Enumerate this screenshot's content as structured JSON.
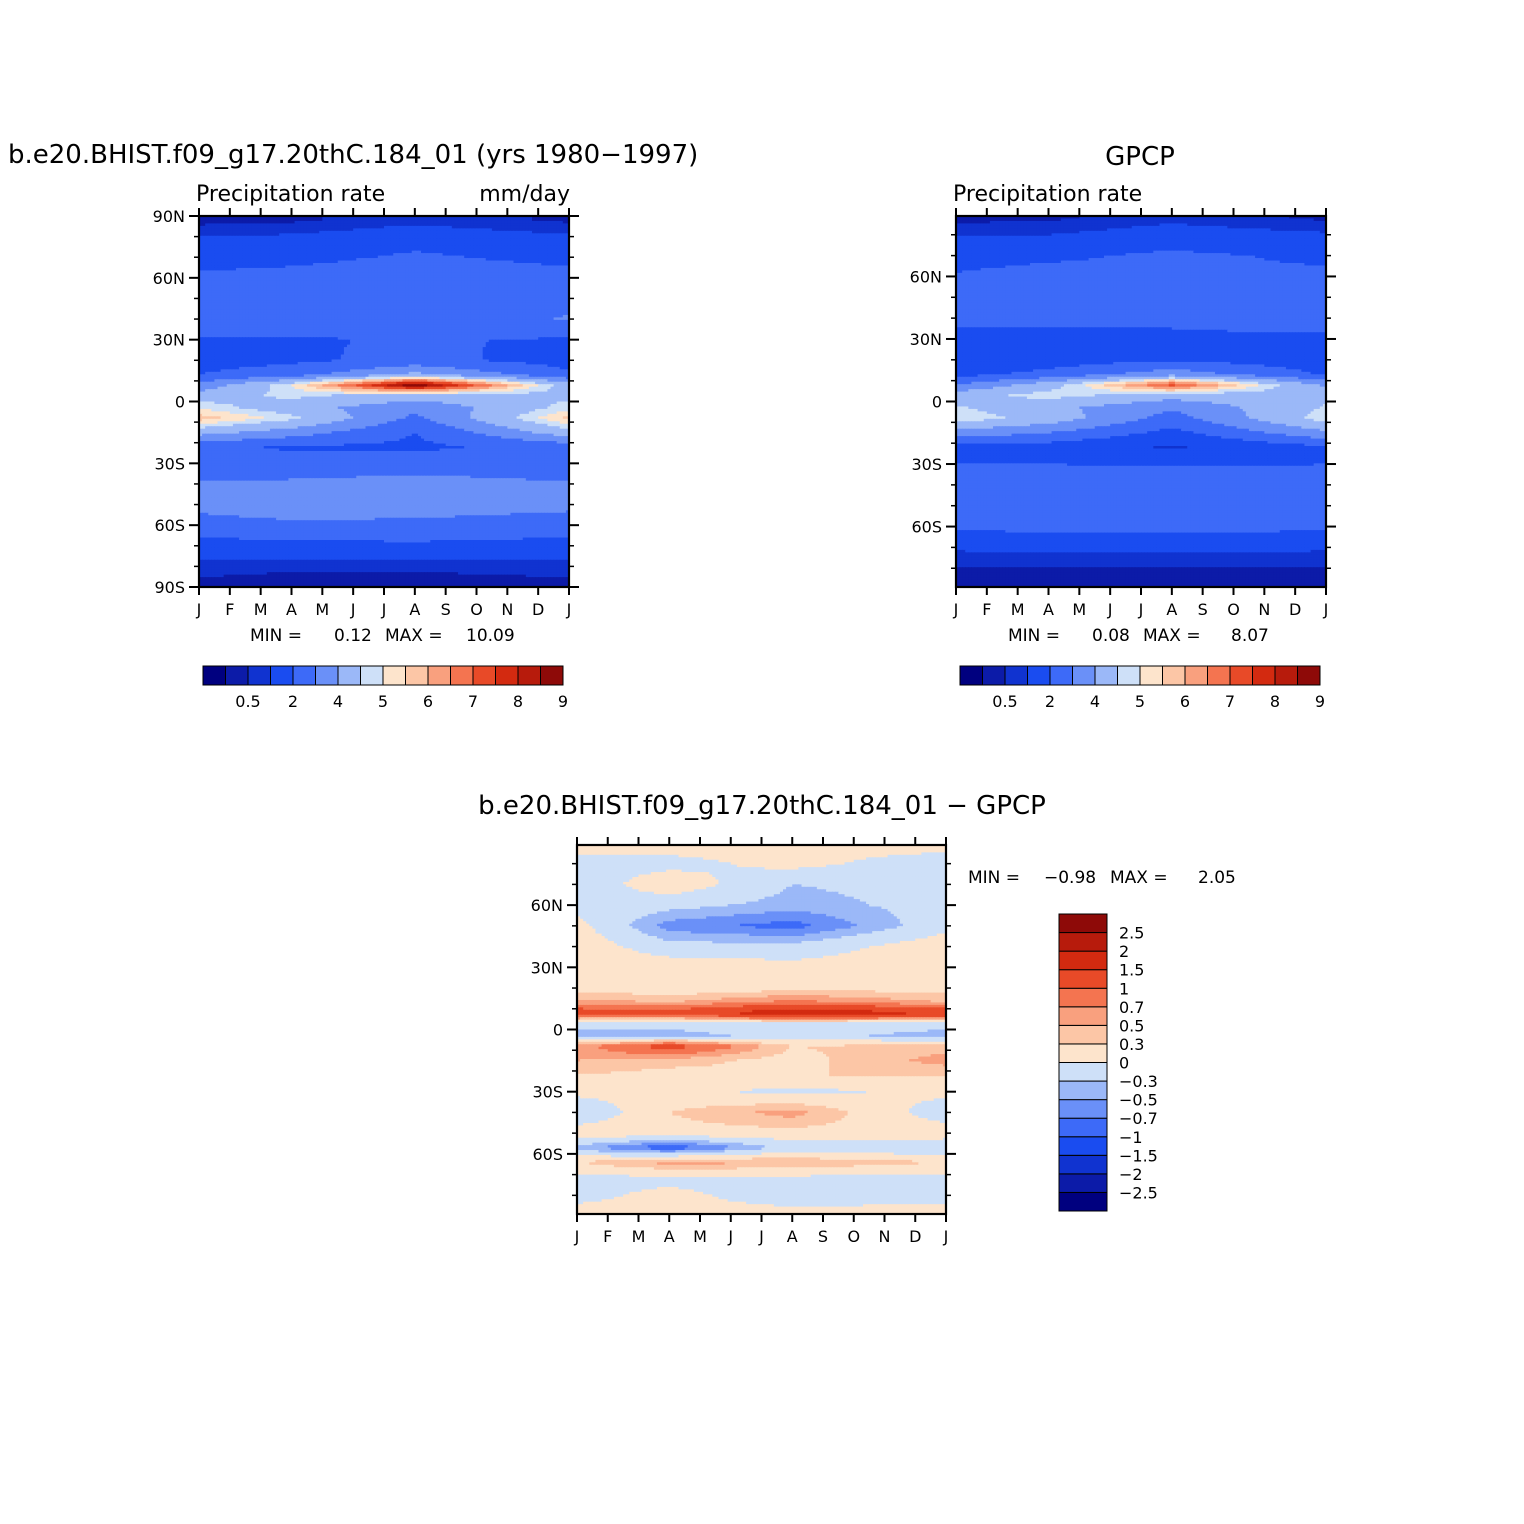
{
  "chart_data": [
    {
      "type": "heatmap",
      "title": "b.e20.BHIST.f09_g17.20thC.184_01 (yrs 1980−1997)",
      "subtitle_left": "Precipitation  rate",
      "subtitle_right": "mm/day",
      "x_ticks": [
        "J",
        "F",
        "M",
        "A",
        "M",
        "J",
        "J",
        "A",
        "S",
        "O",
        "N",
        "D",
        "J"
      ],
      "y_ticks": [
        {
          "lat": 90,
          "label": "90N"
        },
        {
          "lat": 60,
          "label": "60N"
        },
        {
          "lat": 30,
          "label": "30N"
        },
        {
          "lat": 0,
          "label": "0"
        },
        {
          "lat": -30,
          "label": "30S"
        },
        {
          "lat": -60,
          "label": "60S"
        },
        {
          "lat": -90,
          "label": "90S"
        }
      ],
      "ylim": [
        -90,
        90
      ],
      "stats": {
        "min_label": "MIN =",
        "min": "0.12",
        "max_label": "MAX =",
        "max": "10.09"
      },
      "field": {
        "lat_bands": [
          {
            "lat": 88,
            "values": [
              0.3,
              0.4,
              0.8,
              0.4
            ]
          },
          {
            "lat": 80,
            "values": [
              1,
              1.1,
              1.5,
              1.1
            ]
          },
          {
            "lat": 70,
            "values": [
              1.4,
              1.6,
              2.2,
              1.6
            ]
          },
          {
            "lat": 60,
            "values": [
              2.3,
              2.5,
              2.9,
              2.5
            ]
          },
          {
            "lat": 50,
            "values": [
              2.6,
              2.3,
              2.8,
              2.6
            ]
          },
          {
            "lat": 40,
            "values": [
              3,
              2.5,
              2.2,
              3.1
            ]
          },
          {
            "lat": 30,
            "values": [
              1.9,
              1.9,
              2.1,
              1.9
            ]
          },
          {
            "lat": 20,
            "values": [
              1.6,
              1.8,
              2.3,
              1.6
            ]
          },
          {
            "lat": 13,
            "values": [
              2,
              2.6,
              4.3,
              2.2
            ]
          },
          {
            "lat": 8,
            "values": [
              3.3,
              5.5,
              9.6,
              4.5
            ]
          },
          {
            "lat": 3,
            "values": [
              4.5,
              5.2,
              4.6,
              4.8
            ]
          },
          {
            "lat": -3,
            "values": [
              5.4,
              4.5,
              3.2,
              5.3
            ]
          },
          {
            "lat": -8,
            "values": [
              6.3,
              5.2,
              2.8,
              6.2
            ]
          },
          {
            "lat": -15,
            "values": [
              4.4,
              3.5,
              2,
              4.6
            ]
          },
          {
            "lat": -22,
            "values": [
              2.2,
              1.9,
              1.8,
              2.4
            ]
          },
          {
            "lat": -30,
            "values": [
              2.3,
              2.3,
              2.5,
              2.3
            ]
          },
          {
            "lat": -40,
            "values": [
              3.1,
              3.2,
              3.4,
              3.1
            ]
          },
          {
            "lat": -50,
            "values": [
              3.3,
              3.6,
              3.4,
              3.2
            ]
          },
          {
            "lat": -60,
            "values": [
              2.6,
              2.8,
              2.8,
              2.6
            ]
          },
          {
            "lat": -70,
            "values": [
              1.6,
              1.7,
              1.8,
              1.6
            ]
          },
          {
            "lat": -80,
            "values": [
              0.7,
              0.6,
              0.6,
              0.7
            ]
          },
          {
            "lat": -88,
            "values": [
              0.4,
              0.3,
              0.3,
              0.4
            ]
          }
        ],
        "month_anchors": [
          0,
          3,
          7,
          12
        ]
      },
      "colorbar": {
        "orientation": "horizontal",
        "levels": [
          0.2,
          0.5,
          1,
          2,
          3,
          4,
          5,
          5.5,
          6,
          6.5,
          7,
          7.5,
          8,
          8.5,
          9
        ],
        "labels": [
          "0.5",
          "2",
          "4",
          "5",
          "6",
          "7",
          "8",
          "9"
        ],
        "colors": [
          "#00007f",
          "#0c1ba8",
          "#1033d0",
          "#1a4cf0",
          "#3d6af8",
          "#6a90f8",
          "#9bb8f8",
          "#cee0f8",
          "#fde4cc",
          "#fcc6a6",
          "#f9a07e",
          "#f47450",
          "#e84a28",
          "#d32a10",
          "#b71b0c",
          "#8e0a08"
        ]
      }
    },
    {
      "type": "heatmap",
      "title": "GPCP",
      "subtitle_left": "Precipitation  rate",
      "subtitle_right": "",
      "x_ticks": [
        "J",
        "F",
        "M",
        "A",
        "M",
        "J",
        "J",
        "A",
        "S",
        "O",
        "N",
        "D",
        "J"
      ],
      "y_ticks": [
        {
          "lat": 60,
          "label": "60N"
        },
        {
          "lat": 30,
          "label": "30N"
        },
        {
          "lat": 0,
          "label": "0"
        },
        {
          "lat": -30,
          "label": "30S"
        },
        {
          "lat": -60,
          "label": "60S"
        }
      ],
      "ylim": [
        -89,
        89
      ],
      "stats": {
        "min_label": "MIN =",
        "min": "0.08",
        "max_label": "MAX =",
        "max": "8.07"
      },
      "field": {
        "lat_bands": [
          {
            "lat": 88,
            "values": [
              0.3,
              0.4,
              0.8,
              0.4
            ]
          },
          {
            "lat": 80,
            "values": [
              1,
              1,
              1.4,
              1.1
            ]
          },
          {
            "lat": 70,
            "values": [
              1.6,
              1.8,
              2.2,
              1.8
            ]
          },
          {
            "lat": 60,
            "values": [
              2.1,
              2.4,
              2.2,
              2.2
            ]
          },
          {
            "lat": 50,
            "values": [
              2.6,
              2.2,
              2.4,
              2.7
            ]
          },
          {
            "lat": 40,
            "values": [
              2.4,
              2.2,
              2.1,
              2.6
            ]
          },
          {
            "lat": 30,
            "values": [
              1.6,
              1.7,
              1.9,
              1.7
            ]
          },
          {
            "lat": 20,
            "values": [
              1.3,
              1.5,
              1.9,
              1.4
            ]
          },
          {
            "lat": 13,
            "values": [
              1.7,
              2.3,
              3.6,
              1.9
            ]
          },
          {
            "lat": 8,
            "values": [
              3,
              4.6,
              7.8,
              3.8
            ]
          },
          {
            "lat": 3,
            "values": [
              4.6,
              5.3,
              4.5,
              4.7
            ]
          },
          {
            "lat": -3,
            "values": [
              5.1,
              4.3,
              3.1,
              5.1
            ]
          },
          {
            "lat": -8,
            "values": [
              5.5,
              4.6,
              2.6,
              5.4
            ]
          },
          {
            "lat": -15,
            "values": [
              3.6,
              3,
              1.7,
              3.8
            ]
          },
          {
            "lat": -22,
            "values": [
              1.6,
              1.5,
              0.9,
              1.8
            ]
          },
          {
            "lat": -30,
            "values": [
              2,
              2,
              1.9,
              2
            ]
          },
          {
            "lat": -40,
            "values": [
              2.3,
              2.6,
              2.6,
              2.3
            ]
          },
          {
            "lat": -50,
            "values": [
              2.7,
              3,
              3,
              2.7
            ]
          },
          {
            "lat": -60,
            "values": [
              2.2,
              2.3,
              2.4,
              2.2
            ]
          },
          {
            "lat": -70,
            "values": [
              1.1,
              1.2,
              1.2,
              1.1
            ]
          },
          {
            "lat": -80,
            "values": [
              0.5,
              0.5,
              0.5,
              0.5
            ]
          },
          {
            "lat": -88,
            "values": [
              0.3,
              0.3,
              0.3,
              0.3
            ]
          }
        ],
        "month_anchors": [
          0,
          3,
          7,
          12
        ]
      },
      "colorbar": {
        "orientation": "horizontal",
        "levels": [
          0.2,
          0.5,
          1,
          2,
          3,
          4,
          5,
          5.5,
          6,
          6.5,
          7,
          7.5,
          8,
          8.5,
          9
        ],
        "labels": [
          "0.5",
          "2",
          "4",
          "5",
          "6",
          "7",
          "8",
          "9"
        ],
        "colors": [
          "#00007f",
          "#0c1ba8",
          "#1033d0",
          "#1a4cf0",
          "#3d6af8",
          "#6a90f8",
          "#9bb8f8",
          "#cee0f8",
          "#fde4cc",
          "#fcc6a6",
          "#f9a07e",
          "#f47450",
          "#e84a28",
          "#d32a10",
          "#b71b0c",
          "#8e0a08"
        ]
      }
    },
    {
      "type": "heatmap",
      "title": "b.e20.BHIST.f09_g17.20thC.184_01  −  GPCP",
      "x_ticks": [
        "J",
        "F",
        "M",
        "A",
        "M",
        "J",
        "J",
        "A",
        "S",
        "O",
        "N",
        "D",
        "J"
      ],
      "y_ticks": [
        {
          "lat": 60,
          "label": "60N"
        },
        {
          "lat": 30,
          "label": "30N"
        },
        {
          "lat": 0,
          "label": "0"
        },
        {
          "lat": -30,
          "label": "30S"
        },
        {
          "lat": -60,
          "label": "60S"
        }
      ],
      "ylim": [
        -89,
        89
      ],
      "stats": {
        "min_label": "MIN =",
        "min": "−0.98",
        "max_label": "MAX =",
        "max": "2.05"
      },
      "field": {
        "lat_bands": [
          {
            "lat": 88,
            "values": [
              0.1,
              0.1,
              0.1,
              0.1
            ]
          },
          {
            "lat": 80,
            "values": [
              -0.1,
              -0.1,
              0.1,
              -0.2
            ]
          },
          {
            "lat": 70,
            "values": [
              -0.2,
              0.2,
              -0.3,
              -0.2
            ]
          },
          {
            "lat": 60,
            "values": [
              -0.1,
              -0.2,
              -0.4,
              -0.2
            ]
          },
          {
            "lat": 50,
            "values": [
              0.1,
              -0.6,
              -0.8,
              -0.1
            ]
          },
          {
            "lat": 40,
            "values": [
              0.2,
              -0.2,
              -0.2,
              0.2
            ]
          },
          {
            "lat": 30,
            "values": [
              0.2,
              0.2,
              0.1,
              0.2
            ]
          },
          {
            "lat": 20,
            "values": [
              0.2,
              0.1,
              0.2,
              0.2
            ]
          },
          {
            "lat": 13,
            "values": [
              0.6,
              0.5,
              0.8,
              0.5
            ]
          },
          {
            "lat": 8,
            "values": [
              1.3,
              1.2,
              1.9,
              1.5
            ]
          },
          {
            "lat": 3,
            "values": [
              -0.2,
              -0.2,
              -0.1,
              -0.2
            ]
          },
          {
            "lat": -3,
            "values": [
              -0.4,
              -0.4,
              -0.2,
              -0.4
            ]
          },
          {
            "lat": -8,
            "values": [
              0.6,
              1.2,
              0.3,
              0.4
            ]
          },
          {
            "lat": -15,
            "values": [
              0.5,
              0.4,
              0.2,
              0.6
            ]
          },
          {
            "lat": -22,
            "values": [
              0.3,
              0.2,
              0.3,
              0.3
            ]
          },
          {
            "lat": -30,
            "values": [
              0.1,
              0.1,
              -0.1,
              0.1
            ]
          },
          {
            "lat": -40,
            "values": [
              -0.3,
              0.3,
              0.6,
              -0.2
            ]
          },
          {
            "lat": -50,
            "values": [
              0.2,
              0.2,
              0.2,
              0.2
            ]
          },
          {
            "lat": -57,
            "values": [
              -0.4,
              -0.9,
              -0.2,
              -0.3
            ]
          },
          {
            "lat": -64,
            "values": [
              0.3,
              0.6,
              0.5,
              0.3
            ]
          },
          {
            "lat": -72,
            "values": [
              -0.1,
              -0.1,
              -0.1,
              -0.1
            ]
          },
          {
            "lat": -80,
            "values": [
              -0.1,
              0.1,
              -0.2,
              -0.1
            ]
          },
          {
            "lat": -88,
            "values": [
              0.1,
              0.1,
              0.1,
              0.1
            ]
          }
        ],
        "month_anchors": [
          0,
          3,
          7,
          12
        ]
      },
      "colorbar": {
        "orientation": "vertical",
        "levels": [
          -2.5,
          -2,
          -1.5,
          -1,
          -0.7,
          -0.5,
          -0.3,
          0,
          0.3,
          0.5,
          0.7,
          1,
          1.5,
          2,
          2.5
        ],
        "labels": [
          "−2.5",
          "−2",
          "−1.5",
          "−1",
          "−0.7",
          "−0.5",
          "−0.3",
          "0",
          "0.3",
          "0.5",
          "0.7",
          "1",
          "1.5",
          "2",
          "2.5"
        ],
        "colors": [
          "#00007f",
          "#0c1ba8",
          "#1033d0",
          "#1a4cf0",
          "#3d6af8",
          "#6a90f8",
          "#9bb8f8",
          "#cee0f8",
          "#fde4cc",
          "#fcc6a6",
          "#f9a07e",
          "#f47450",
          "#e84a28",
          "#d32a10",
          "#b71b0c",
          "#8e0a08"
        ]
      }
    }
  ]
}
